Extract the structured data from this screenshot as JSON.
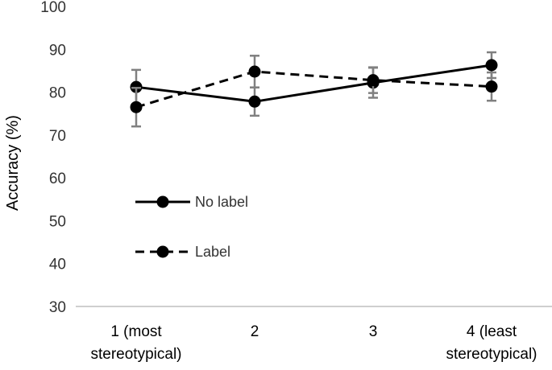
{
  "chart_data": {
    "type": "line",
    "title": "",
    "xlabel": "",
    "ylabel": "Accuracy (%)",
    "ylim": [
      30,
      100
    ],
    "yticks": [
      30,
      40,
      50,
      60,
      70,
      80,
      90,
      100
    ],
    "grid": false,
    "legend_position": "left-middle",
    "categories": [
      [
        "1 (most",
        "stereotypical)"
      ],
      [
        "2"
      ],
      [
        "3"
      ],
      [
        "4 (least",
        "stereotypical)"
      ]
    ],
    "series": [
      {
        "name": "No label",
        "style": "solid",
        "color": "#000000",
        "values": [
          81.2,
          77.8,
          82.2,
          86.3
        ],
        "error": [
          4.0,
          3.3,
          3.5,
          3.0
        ]
      },
      {
        "name": "Label",
        "style": "dashed",
        "color": "#000000",
        "values": [
          76.5,
          84.8,
          82.8,
          81.3
        ],
        "error": [
          4.5,
          3.7,
          3.0,
          3.3
        ]
      }
    ],
    "error_bar_color": "#808080"
  }
}
